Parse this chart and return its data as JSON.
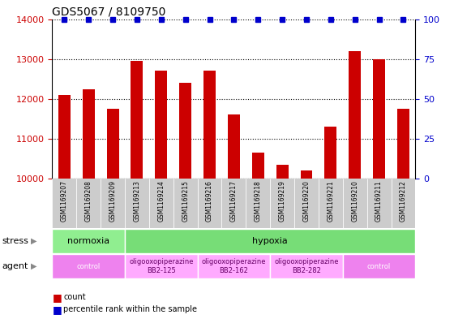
{
  "title": "GDS5067 / 8109750",
  "samples": [
    "GSM1169207",
    "GSM1169208",
    "GSM1169209",
    "GSM1169213",
    "GSM1169214",
    "GSM1169215",
    "GSM1169216",
    "GSM1169217",
    "GSM1169218",
    "GSM1169219",
    "GSM1169220",
    "GSM1169221",
    "GSM1169210",
    "GSM1169211",
    "GSM1169212"
  ],
  "counts": [
    12100,
    12250,
    11750,
    12950,
    12700,
    12400,
    12700,
    11600,
    10650,
    10350,
    10200,
    11300,
    13200,
    13000,
    11750
  ],
  "percentiles": [
    100,
    100,
    100,
    100,
    100,
    100,
    100,
    100,
    100,
    100,
    100,
    100,
    100,
    100,
    100
  ],
  "bar_color": "#cc0000",
  "percentile_color": "#0000cc",
  "ylim_left": [
    10000,
    14000
  ],
  "ylim_right": [
    0,
    100
  ],
  "yticks_left": [
    10000,
    11000,
    12000,
    13000,
    14000
  ],
  "yticks_right": [
    0,
    25,
    50,
    75,
    100
  ],
  "stress_groups": [
    {
      "label": "normoxia",
      "start": 0,
      "end": 3,
      "color": "#90ee90"
    },
    {
      "label": "hypoxia",
      "start": 3,
      "end": 15,
      "color": "#77dd77"
    }
  ],
  "agent_groups": [
    {
      "label": "control",
      "start": 0,
      "end": 3,
      "color": "#ee82ee",
      "text_color": "#ffffff"
    },
    {
      "label": "oligooxopiperazine\nBB2-125",
      "start": 3,
      "end": 6,
      "color": "#ffaaff",
      "text_color": "#660066"
    },
    {
      "label": "oligooxopiperazine\nBB2-162",
      "start": 6,
      "end": 9,
      "color": "#ffaaff",
      "text_color": "#660066"
    },
    {
      "label": "oligooxopiperazine\nBB2-282",
      "start": 9,
      "end": 12,
      "color": "#ffaaff",
      "text_color": "#660066"
    },
    {
      "label": "control",
      "start": 12,
      "end": 15,
      "color": "#ee82ee",
      "text_color": "#ffffff"
    }
  ],
  "background_color": "#ffffff",
  "grid_color": "#000000",
  "tick_label_color_left": "#cc0000",
  "tick_label_color_right": "#0000cc",
  "bar_baseline": 10000,
  "bar_width": 0.5,
  "label_area_color": "#cccccc"
}
